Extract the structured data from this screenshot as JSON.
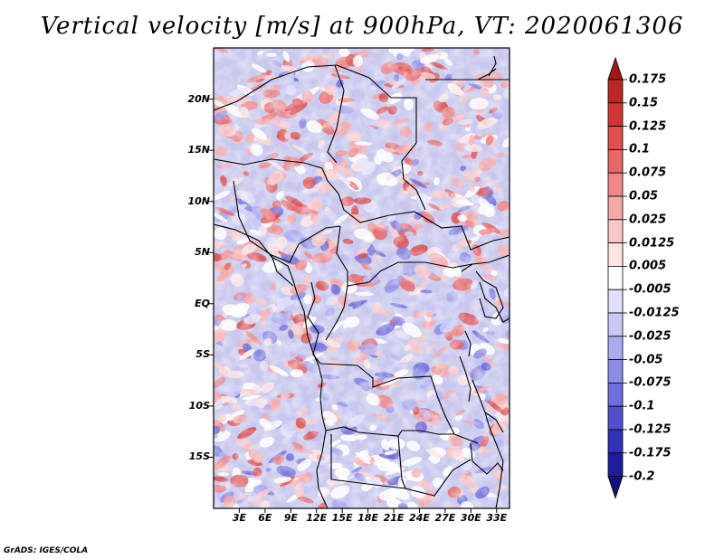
{
  "title": "Vertical velocity [m/s] at 900hPa, VT: 2020061306",
  "footer": "GrADS: IGES/COLA",
  "map": {
    "lat_labels": [
      "20N",
      "15N",
      "10N",
      "5N",
      "EQ",
      "5S",
      "10S",
      "15S"
    ],
    "lat_values": [
      20,
      15,
      10,
      5,
      0,
      -5,
      -10,
      -15
    ],
    "lon_labels": [
      "3E",
      "6E",
      "9E",
      "12E",
      "15E",
      "18E",
      "21E",
      "24E",
      "27E",
      "30E",
      "33E"
    ],
    "lon_values": [
      3,
      6,
      9,
      12,
      15,
      18,
      21,
      24,
      27,
      30,
      33
    ],
    "lat_range": [
      -20,
      25
    ],
    "lon_range": [
      0,
      34.5
    ]
  },
  "colorbar": {
    "labels": [
      "0.175",
      "0.15",
      "0.125",
      "0.1",
      "0.075",
      "0.05",
      "0.025",
      "0.0125",
      "0.005",
      "-0.005",
      "-0.0125",
      "-0.025",
      "-0.05",
      "-0.075",
      "-0.1",
      "-0.125",
      "-0.175",
      "-0.2"
    ],
    "colors": [
      "#a01818",
      "#b82828",
      "#cc3838",
      "#dc5050",
      "#e66868",
      "#ee8888",
      "#f4a8a8",
      "#f8c8c8",
      "#fce4e4",
      "#ffffff",
      "#e0e0fa",
      "#c8c8f4",
      "#aaaaee",
      "#8c8ce6",
      "#6e6edc",
      "#5050cc",
      "#3232b4",
      "#1e1e9a",
      "#101080"
    ]
  }
}
